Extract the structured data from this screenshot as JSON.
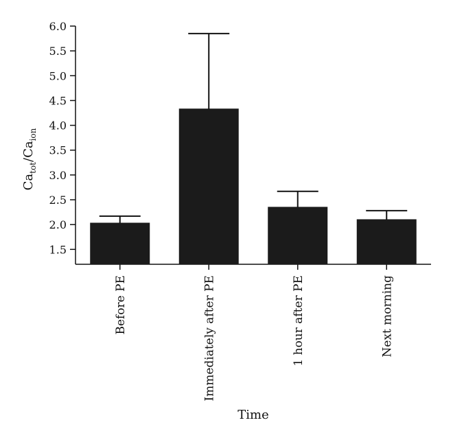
{
  "chart_data": {
    "type": "bar",
    "title": "",
    "categories": [
      "Before PE",
      "Immediately after PE",
      "1 hour after PE",
      "Next morning"
    ],
    "values": [
      2.03,
      4.33,
      2.35,
      2.1
    ],
    "errors": [
      0.14,
      1.52,
      0.32,
      0.18
    ],
    "xlabel": "Time",
    "ylabel": {
      "base": "Ca",
      "sub1": "tot",
      "slash": "/Ca",
      "sub2": "ion"
    },
    "ylim": [
      1.2,
      6.0
    ],
    "yticks": [
      1.5,
      2.0,
      2.5,
      3.0,
      3.5,
      4.0,
      4.5,
      5.0,
      5.5,
      6.0
    ],
    "ytick_labels": [
      "1.5",
      "2.0",
      "2.5",
      "3.0",
      "3.5",
      "4.0",
      "4.5",
      "5.0",
      "5.5",
      "6.0"
    ],
    "grid": false,
    "legend": "none",
    "colors": {
      "bar": "#1b1b1b",
      "axis": "#111111",
      "error_bar": "#111111",
      "text": "#111111",
      "background": "#ffffff"
    }
  }
}
